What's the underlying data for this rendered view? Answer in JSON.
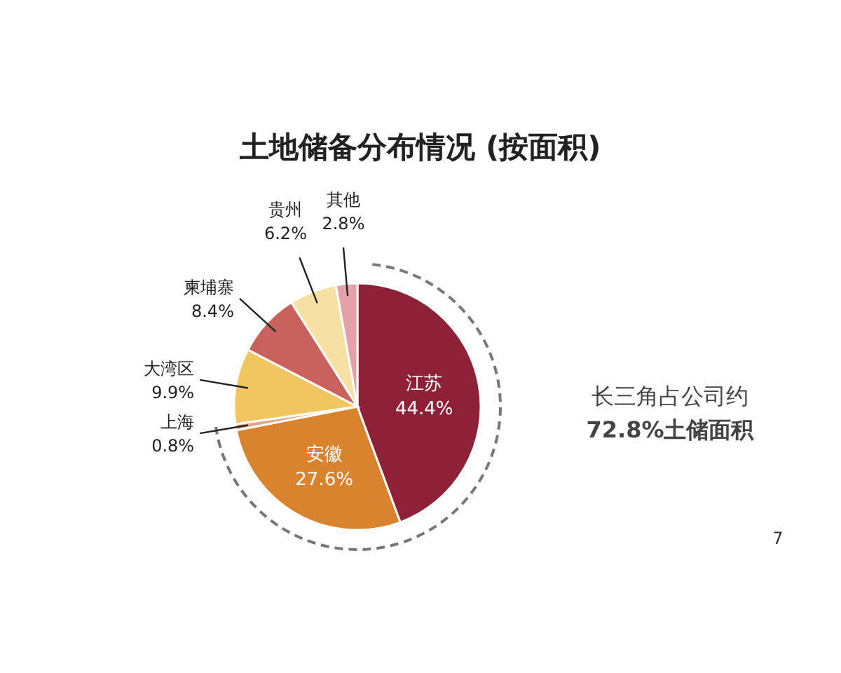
{
  "chart_data": {
    "type": "pie",
    "title": "土地储备分布情况 (按面积)",
    "categories": [
      "江苏",
      "安徽",
      "上海",
      "大湾区",
      "柬埔寨",
      "贵州",
      "其他"
    ],
    "values": [
      44.4,
      27.6,
      0.8,
      9.9,
      8.4,
      6.2,
      2.8
    ],
    "colors": [
      "#8e2037",
      "#d9832e",
      "#e6a383",
      "#f1c55f",
      "#c9625c",
      "#f6e0a4",
      "#e3a1aa"
    ],
    "value_labels": [
      "44.4%",
      "27.6%",
      "0.8%",
      "9.9%",
      "8.4%",
      "6.2%",
      "2.8%"
    ],
    "annotations": [
      "长三角占公司约",
      "72.8%土储面积",
      "7"
    ]
  }
}
